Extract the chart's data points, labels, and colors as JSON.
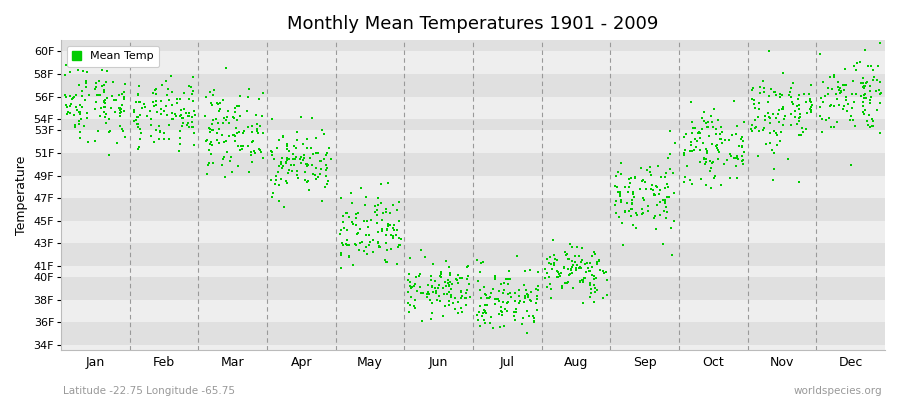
{
  "title": "Monthly Mean Temperatures 1901 - 2009",
  "ylabel": "Temperature",
  "xlabel_lat": "Latitude -22.75 Longitude -65.75",
  "watermark": "worldspecies.org",
  "legend_label": "Mean Temp",
  "dot_color": "#00cc00",
  "background_color": "#ffffff",
  "band_colors_light": "#eeeeee",
  "band_colors_dark": "#e0e0e0",
  "ylim": [
    33.5,
    61.0
  ],
  "yticks": [
    34,
    36,
    38,
    40,
    41,
    43,
    45,
    47,
    49,
    51,
    53,
    54,
    56,
    58,
    60
  ],
  "ytick_labels": [
    "34F",
    "36F",
    "38F",
    "40F",
    "41F",
    "43F",
    "45F",
    "47F",
    "49F",
    "51F",
    "53F",
    "54F",
    "56F",
    "58F",
    "60F"
  ],
  "months": [
    "Jan",
    "Feb",
    "Mar",
    "Apr",
    "May",
    "Jun",
    "Jul",
    "Aug",
    "Sep",
    "Oct",
    "Nov",
    "Dec"
  ],
  "num_years": 109,
  "monthly_means": [
    55.5,
    54.2,
    53.0,
    50.2,
    43.8,
    38.8,
    38.0,
    40.5,
    47.2,
    51.5,
    54.5,
    56.2
  ],
  "monthly_stds": [
    1.8,
    1.5,
    1.8,
    1.5,
    1.8,
    1.2,
    1.5,
    1.2,
    1.8,
    1.5,
    2.0,
    1.8
  ]
}
